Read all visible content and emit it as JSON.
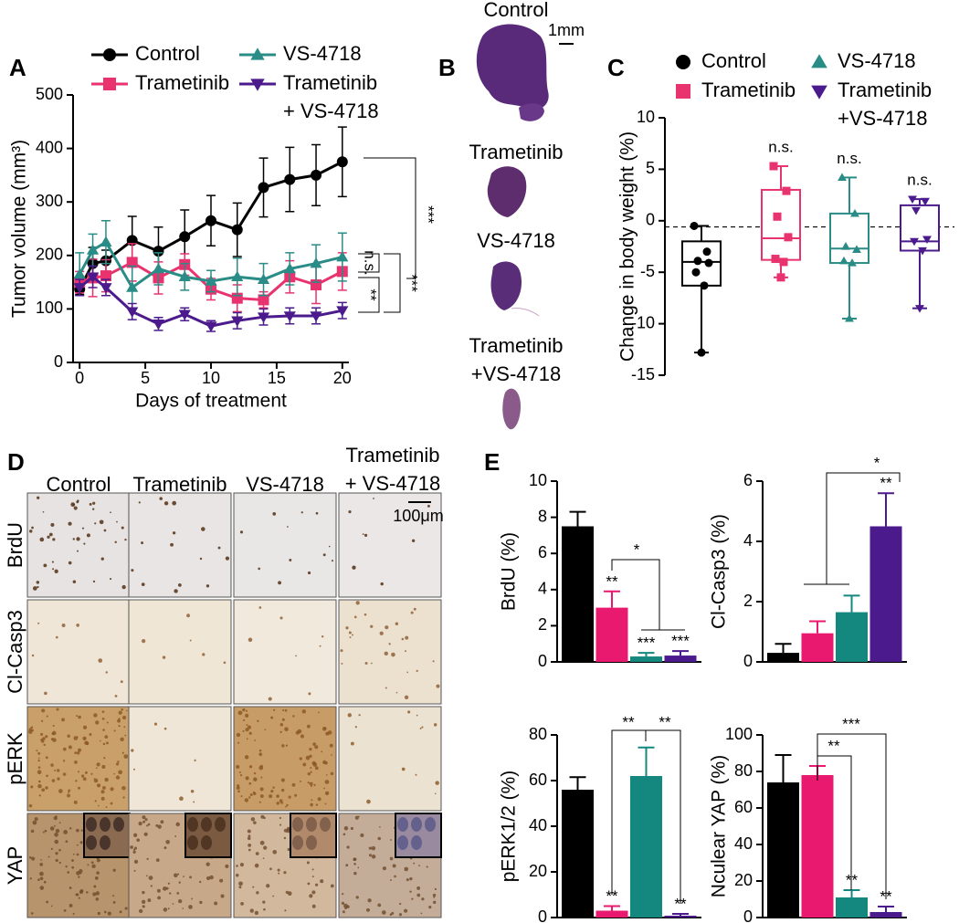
{
  "panel_labels": [
    "A",
    "B",
    "C",
    "D",
    "E"
  ],
  "panel_b": {
    "labels": [
      "Control",
      "Trametinib",
      "VS-4718",
      "Trametinib\n+VS-4718"
    ],
    "scale_bar": "1mm"
  },
  "panel_d": {
    "columns": [
      "Control",
      "Trametinib",
      "VS-4718",
      "Trametinib\n+ VS-4718"
    ],
    "rows": [
      "BrdU",
      "Cl-Casp3",
      "pERK",
      "YAP"
    ],
    "scale_bar": "100μm"
  },
  "chart_data": [
    {
      "type": "line",
      "xlabel": "Days of treatment",
      "ylabel": "Tumor volume (mm³)",
      "x": [
        0,
        1,
        2,
        4,
        6,
        8,
        10,
        12,
        14,
        16,
        18,
        20
      ],
      "xlim": [
        -0.5,
        20.5
      ],
      "xticks": [
        0,
        5,
        10,
        15,
        20
      ],
      "ylim": [
        0,
        500
      ],
      "yticks": [
        0,
        100,
        200,
        300,
        400,
        500
      ],
      "series": [
        {
          "name": "Control",
          "color": "#000000",
          "marker": "circle",
          "values": [
            137,
            185,
            190,
            228,
            208,
            235,
            265,
            248,
            327,
            342,
            350,
            375
          ],
          "errors": [
            10,
            30,
            20,
            45,
            45,
            50,
            47,
            50,
            55,
            60,
            57,
            65
          ]
        },
        {
          "name": "Trametinib",
          "color": "#e8336f",
          "marker": "square",
          "values": [
            150,
            158,
            162,
            187,
            158,
            183,
            137,
            120,
            117,
            160,
            145,
            170
          ],
          "errors": [
            20,
            35,
            30,
            35,
            30,
            20,
            20,
            25,
            15,
            30,
            35,
            35
          ]
        },
        {
          "name": "VS-4718",
          "color": "#2a8c86",
          "marker": "triangle",
          "values": [
            165,
            210,
            225,
            140,
            175,
            160,
            152,
            160,
            155,
            175,
            185,
            197
          ],
          "errors": [
            40,
            30,
            40,
            40,
            30,
            25,
            20,
            35,
            30,
            30,
            35,
            45
          ]
        },
        {
          "name": "Trametinib\n+ VS-4718",
          "color": "#4b1a8c",
          "marker": "triangle-down",
          "values": [
            140,
            160,
            140,
            95,
            72,
            90,
            68,
            78,
            85,
            87,
            87,
            97
          ],
          "errors": [
            15,
            20,
            15,
            15,
            12,
            12,
            10,
            15,
            15,
            15,
            15,
            15
          ]
        }
      ],
      "annotations": [
        "***",
        "n.s.",
        "***",
        "**"
      ]
    },
    {
      "type": "box",
      "ylabel": "Change in body weight (%)",
      "ylim": [
        -15,
        10
      ],
      "yticks": [
        -15,
        -10,
        -5,
        0,
        5,
        10
      ],
      "reference_line": -0.6,
      "series": [
        {
          "name": "Control",
          "color": "#000000",
          "marker": "circle",
          "min": -12.8,
          "q1": -6.3,
          "median": -4.0,
          "q3": -2.0,
          "max": -0.5,
          "points": [
            -0.5,
            -3.0,
            -3.9,
            -4.1,
            -5.0,
            -6.3,
            -12.8
          ]
        },
        {
          "name": "Trametinib",
          "color": "#e8336f",
          "marker": "square",
          "min": -5.5,
          "q1": -3.8,
          "median": -1.7,
          "q3": 3.0,
          "max": 5.3,
          "points": [
            5.3,
            2.9,
            0.4,
            -1.6,
            -3.7,
            -4.0,
            -5.5
          ]
        },
        {
          "name": "VS-4718",
          "color": "#2a8c86",
          "marker": "triangle",
          "min": -9.5,
          "q1": -4.1,
          "median": -2.7,
          "q3": 0.7,
          "max": 4.2,
          "points": [
            4.2,
            0.7,
            -2.5,
            -2.8,
            -3.9,
            -4.1,
            -9.5
          ]
        },
        {
          "name": "Trametinib\n+VS-4718",
          "color": "#4b1a8c",
          "marker": "triangle-down",
          "min": -8.5,
          "q1": -2.9,
          "median": -2.0,
          "q3": 1.5,
          "max": 2.1,
          "points": [
            2.1,
            1.9,
            1.0,
            -1.8,
            -2.0,
            -2.9,
            -8.5
          ]
        }
      ],
      "annotations": [
        "n.s.",
        "n.s.",
        "n.s."
      ]
    },
    {
      "type": "bar",
      "ylabel": "BrdU (%)",
      "values": [
        7.5,
        3.0,
        0.3,
        0.35
      ],
      "errors": [
        0.8,
        0.9,
        0.2,
        0.25
      ],
      "colors": [
        "#000000",
        "#e8196e",
        "#14877f",
        "#4b1a8c"
      ],
      "ylim": [
        0,
        10
      ],
      "yticks": [
        0,
        2,
        4,
        6,
        8,
        10
      ],
      "annotations": [
        "**",
        "***",
        "***",
        "*"
      ]
    },
    {
      "type": "bar",
      "ylabel": "Cl-Casp3 (%)",
      "values": [
        0.3,
        0.95,
        1.65,
        4.5
      ],
      "errors": [
        0.3,
        0.4,
        0.55,
        1.1
      ],
      "colors": [
        "#000000",
        "#e8196e",
        "#14877f",
        "#4b1a8c"
      ],
      "ylim": [
        0,
        6
      ],
      "yticks": [
        0,
        2,
        4,
        6
      ],
      "annotations": [
        "**",
        "*"
      ]
    },
    {
      "type": "bar",
      "ylabel": "pERK1/2 (%)",
      "values": [
        56,
        3,
        62,
        0.8
      ],
      "errors": [
        5.5,
        2,
        12.5,
        0.8
      ],
      "colors": [
        "#000000",
        "#e8196e",
        "#14877f",
        "#4b1a8c"
      ],
      "ylim": [
        0,
        80
      ],
      "yticks": [
        0,
        20,
        40,
        60,
        80
      ],
      "annotations": [
        "**",
        "**",
        "**",
        "**"
      ]
    },
    {
      "type": "bar",
      "ylabel": "Nculear YAP (%)",
      "values": [
        74,
        78,
        11,
        3
      ],
      "errors": [
        15,
        5,
        4,
        3
      ],
      "colors": [
        "#000000",
        "#e8196e",
        "#14877f",
        "#4b1a8c"
      ],
      "ylim": [
        0,
        100
      ],
      "yticks": [
        0,
        20,
        40,
        60,
        80,
        100
      ],
      "annotations": [
        "***",
        "**",
        "**",
        "**"
      ]
    }
  ]
}
